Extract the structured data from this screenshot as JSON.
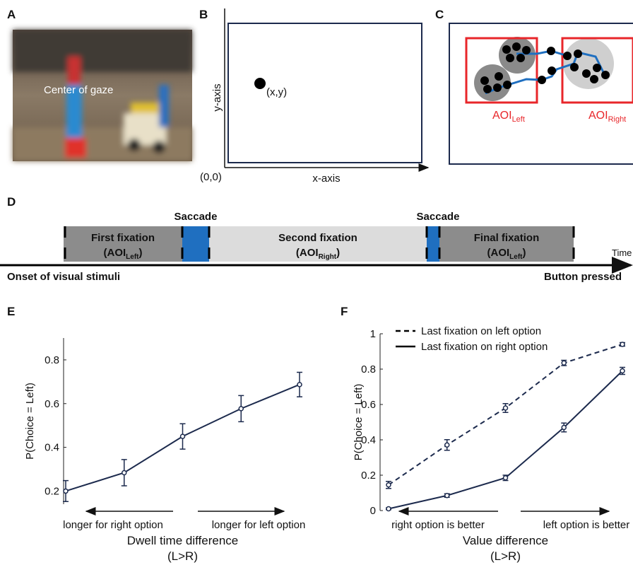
{
  "panel_labels": [
    "A",
    "B",
    "C",
    "D",
    "E",
    "F"
  ],
  "panel_a": {
    "caption": "Center of gaze"
  },
  "panel_b": {
    "y_axis": "y-axis",
    "x_axis": "x-axis",
    "origin": "(0,0)",
    "point": "(x,y)"
  },
  "panel_c": {
    "aoi_left": "AOI",
    "aoi_left_sub": "Left",
    "aoi_right": "AOI",
    "aoi_right_sub": "Right"
  },
  "panel_d": {
    "segments": [
      {
        "name": "First fixation",
        "aoi": "AOI",
        "sub": "Left"
      },
      {
        "name": "Second fixation",
        "aoi": "AOI",
        "sub": "Right"
      },
      {
        "name": "Final fixation",
        "aoi": "AOI",
        "sub": "Left"
      }
    ],
    "saccades": [
      "Saccade",
      "Saccade"
    ],
    "time": "Time",
    "start": "Onset of visual stimuli",
    "end": "Button pressed"
  },
  "chart_data": [
    {
      "type": "line",
      "ylabel": "P(Choice  = Left)",
      "xlabel": "Dwell time difference",
      "xlabel_note": "(L>R)",
      "x_annotations": [
        "longer for right option",
        "longer for left option"
      ],
      "categories": [
        null,
        null,
        null,
        null,
        null
      ],
      "ylim": [
        0.14,
        0.9
      ],
      "yticks": [
        0.2,
        0.4,
        0.6,
        0.8
      ],
      "series": [
        {
          "color": "#1c2a4d",
          "linestyle": "solid",
          "values": [
            0.2,
            0.284,
            0.45,
            0.577,
            0.687
          ],
          "errors": [
            0.048,
            0.06,
            0.058,
            0.06,
            0.056
          ]
        }
      ]
    },
    {
      "type": "line",
      "ylabel": "P(Choice  = Left)",
      "xlabel": "Value difference",
      "xlabel_note": "(L>R)",
      "x_annotations": [
        "right option is better",
        "left option is better"
      ],
      "categories": [
        null,
        null,
        null,
        null,
        null
      ],
      "ylim": [
        0,
        1
      ],
      "yticks": [
        0,
        0.2,
        0.4,
        0.6,
        0.8,
        1
      ],
      "series": [
        {
          "name": "Last fixation on left option",
          "color": "#1c2a4d",
          "linestyle": "dashed",
          "values": [
            0.145,
            0.371,
            0.58,
            0.835,
            0.94
          ],
          "errors": [
            0.02,
            0.03,
            0.025,
            0.015,
            0.01
          ]
        },
        {
          "name": "Last fixation on right option",
          "color": "#1c2a4d",
          "linestyle": "solid",
          "values": [
            0.01,
            0.085,
            0.185,
            0.47,
            0.79
          ],
          "errors": [
            0.005,
            0.01,
            0.015,
            0.025,
            0.02
          ]
        }
      ]
    }
  ]
}
